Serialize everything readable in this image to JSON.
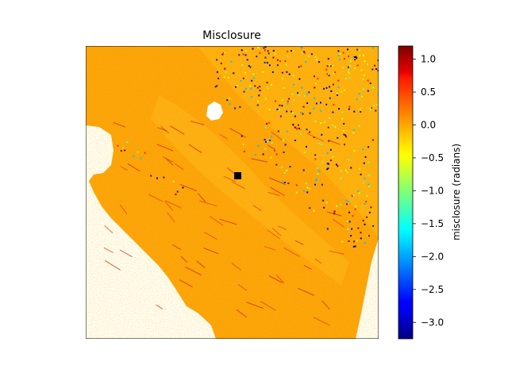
{
  "chart_data": {
    "type": "heatmap",
    "title": "Misclosure",
    "xlabel": "",
    "ylabel": "",
    "colorbar": {
      "label": "misclosure (radians)",
      "colormap": "jet",
      "range": [
        -3.25,
        1.2
      ],
      "ticks": [
        1.0,
        0.5,
        0.0,
        -0.5,
        -1.0,
        -1.5,
        -2.0,
        -2.5,
        -3.0
      ],
      "tick_labels": [
        "1.0",
        "0.5",
        "0.0",
        "−0.5",
        "−1.0",
        "−1.5",
        "−2.0",
        "−2.5",
        "−3.0"
      ]
    },
    "grid": false,
    "typical_value": 0.0,
    "nodata_color": "#ffffff",
    "reference_marker": {
      "shape": "square",
      "color": "#000000"
    }
  }
}
